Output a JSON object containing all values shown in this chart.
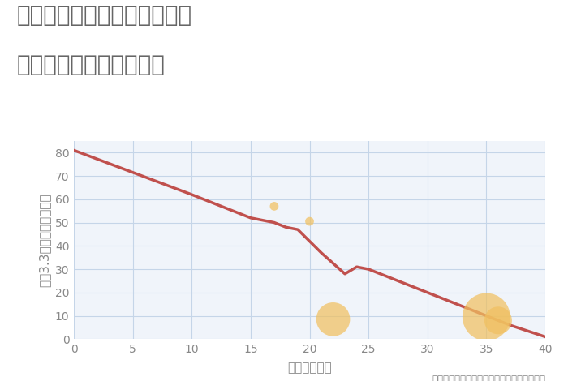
{
  "title_line1": "兵庫県たつの市御津町岩見の",
  "title_line2": "築年数別中古戸建て価格",
  "xlabel": "築年数（年）",
  "ylabel": "坪（3.3㎡）単価（万円）",
  "line_x": [
    0,
    10,
    15,
    16,
    17,
    18,
    19,
    21,
    23,
    24,
    25,
    35,
    37,
    40
  ],
  "line_y": [
    81,
    62,
    52,
    51,
    50,
    48,
    47,
    37,
    28,
    31,
    30,
    10,
    6,
    1
  ],
  "line_color": "#c0504d",
  "line_width": 2.5,
  "scatter_x": [
    17,
    20,
    22,
    35,
    36
  ],
  "scatter_y": [
    57,
    50.5,
    8.5,
    9.5,
    8.0
  ],
  "scatter_sizes": [
    60,
    60,
    900,
    1800,
    600
  ],
  "scatter_color": "#f0c060",
  "scatter_alpha": 0.72,
  "xlim": [
    0,
    40
  ],
  "ylim": [
    0,
    85
  ],
  "xticks": [
    0,
    5,
    10,
    15,
    20,
    25,
    30,
    35,
    40
  ],
  "yticks": [
    0,
    10,
    20,
    30,
    40,
    50,
    60,
    70,
    80
  ],
  "grid_color": "#c5d5e8",
  "bg_color": "#f0f4fa",
  "annotation": "円の大きさは、取引のあった物件面積を示す",
  "title_color": "#666666",
  "axis_color": "#888888",
  "title_fontsize": 20,
  "label_fontsize": 11,
  "tick_fontsize": 10,
  "annotation_fontsize": 8.5
}
